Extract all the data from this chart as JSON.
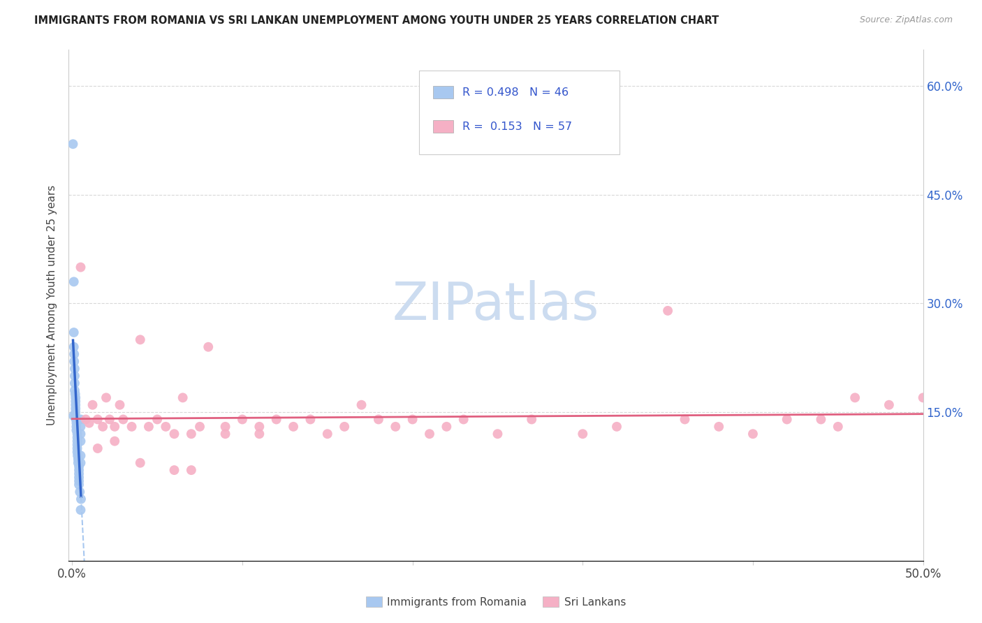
{
  "title": "IMMIGRANTS FROM ROMANIA VS SRI LANKAN UNEMPLOYMENT AMONG YOUTH UNDER 25 YEARS CORRELATION CHART",
  "source": "Source: ZipAtlas.com",
  "ylabel": "Unemployment Among Youth under 25 years",
  "xmax": 0.5,
  "ymax": 0.65,
  "ymin": -0.055,
  "xmin": -0.002,
  "legend1_label": "Immigrants from Romania",
  "legend2_label": "Sri Lankans",
  "R1": 0.498,
  "N1": 46,
  "R2": 0.153,
  "N2": 57,
  "background_color": "#ffffff",
  "scatter_blue_color": "#a8c8f0",
  "scatter_pink_color": "#f5b0c5",
  "line_blue_color": "#3366cc",
  "line_pink_color": "#e06080",
  "dashed_line_color": "#a8c8f0",
  "legend_R_color": "#3355cc",
  "grid_color": "#d8d8d8",
  "title_color": "#222222",
  "watermark_color": "#ccdcf0",
  "romania_x": [
    0.0005,
    0.0008,
    0.001,
    0.001,
    0.001,
    0.0012,
    0.0012,
    0.0015,
    0.0015,
    0.0015,
    0.0015,
    0.0018,
    0.002,
    0.002,
    0.002,
    0.002,
    0.002,
    0.002,
    0.0022,
    0.0025,
    0.0025,
    0.0025,
    0.003,
    0.003,
    0.003,
    0.003,
    0.003,
    0.003,
    0.0032,
    0.0035,
    0.0035,
    0.004,
    0.004,
    0.004,
    0.004,
    0.004,
    0.004,
    0.0045,
    0.005,
    0.005,
    0.005,
    0.005,
    0.005,
    0.005,
    0.005,
    0.0052
  ],
  "romania_y": [
    0.52,
    0.145,
    0.33,
    0.26,
    0.24,
    0.23,
    0.22,
    0.21,
    0.2,
    0.19,
    0.18,
    0.175,
    0.17,
    0.165,
    0.16,
    0.155,
    0.15,
    0.145,
    0.14,
    0.135,
    0.13,
    0.125,
    0.12,
    0.115,
    0.11,
    0.105,
    0.1,
    0.095,
    0.09,
    0.085,
    0.08,
    0.075,
    0.07,
    0.065,
    0.06,
    0.055,
    0.05,
    0.04,
    0.14,
    0.13,
    0.12,
    0.11,
    0.09,
    0.08,
    0.015,
    0.03
  ],
  "srilanka_x": [
    0.005,
    0.008,
    0.01,
    0.012,
    0.015,
    0.018,
    0.02,
    0.022,
    0.025,
    0.028,
    0.03,
    0.035,
    0.04,
    0.045,
    0.05,
    0.055,
    0.06,
    0.065,
    0.07,
    0.075,
    0.08,
    0.09,
    0.1,
    0.11,
    0.12,
    0.13,
    0.14,
    0.15,
    0.16,
    0.17,
    0.18,
    0.19,
    0.2,
    0.21,
    0.22,
    0.23,
    0.25,
    0.27,
    0.3,
    0.32,
    0.35,
    0.36,
    0.38,
    0.4,
    0.42,
    0.44,
    0.45,
    0.46,
    0.48,
    0.5,
    0.015,
    0.025,
    0.04,
    0.06,
    0.07,
    0.09,
    0.11
  ],
  "srilanka_y": [
    0.35,
    0.14,
    0.135,
    0.16,
    0.14,
    0.13,
    0.17,
    0.14,
    0.13,
    0.16,
    0.14,
    0.13,
    0.25,
    0.13,
    0.14,
    0.13,
    0.12,
    0.17,
    0.12,
    0.13,
    0.24,
    0.13,
    0.14,
    0.12,
    0.14,
    0.13,
    0.14,
    0.12,
    0.13,
    0.16,
    0.14,
    0.13,
    0.14,
    0.12,
    0.13,
    0.14,
    0.12,
    0.14,
    0.12,
    0.13,
    0.29,
    0.14,
    0.13,
    0.12,
    0.14,
    0.14,
    0.13,
    0.17,
    0.16,
    0.17,
    0.1,
    0.11,
    0.08,
    0.07,
    0.07,
    0.12,
    0.13
  ]
}
